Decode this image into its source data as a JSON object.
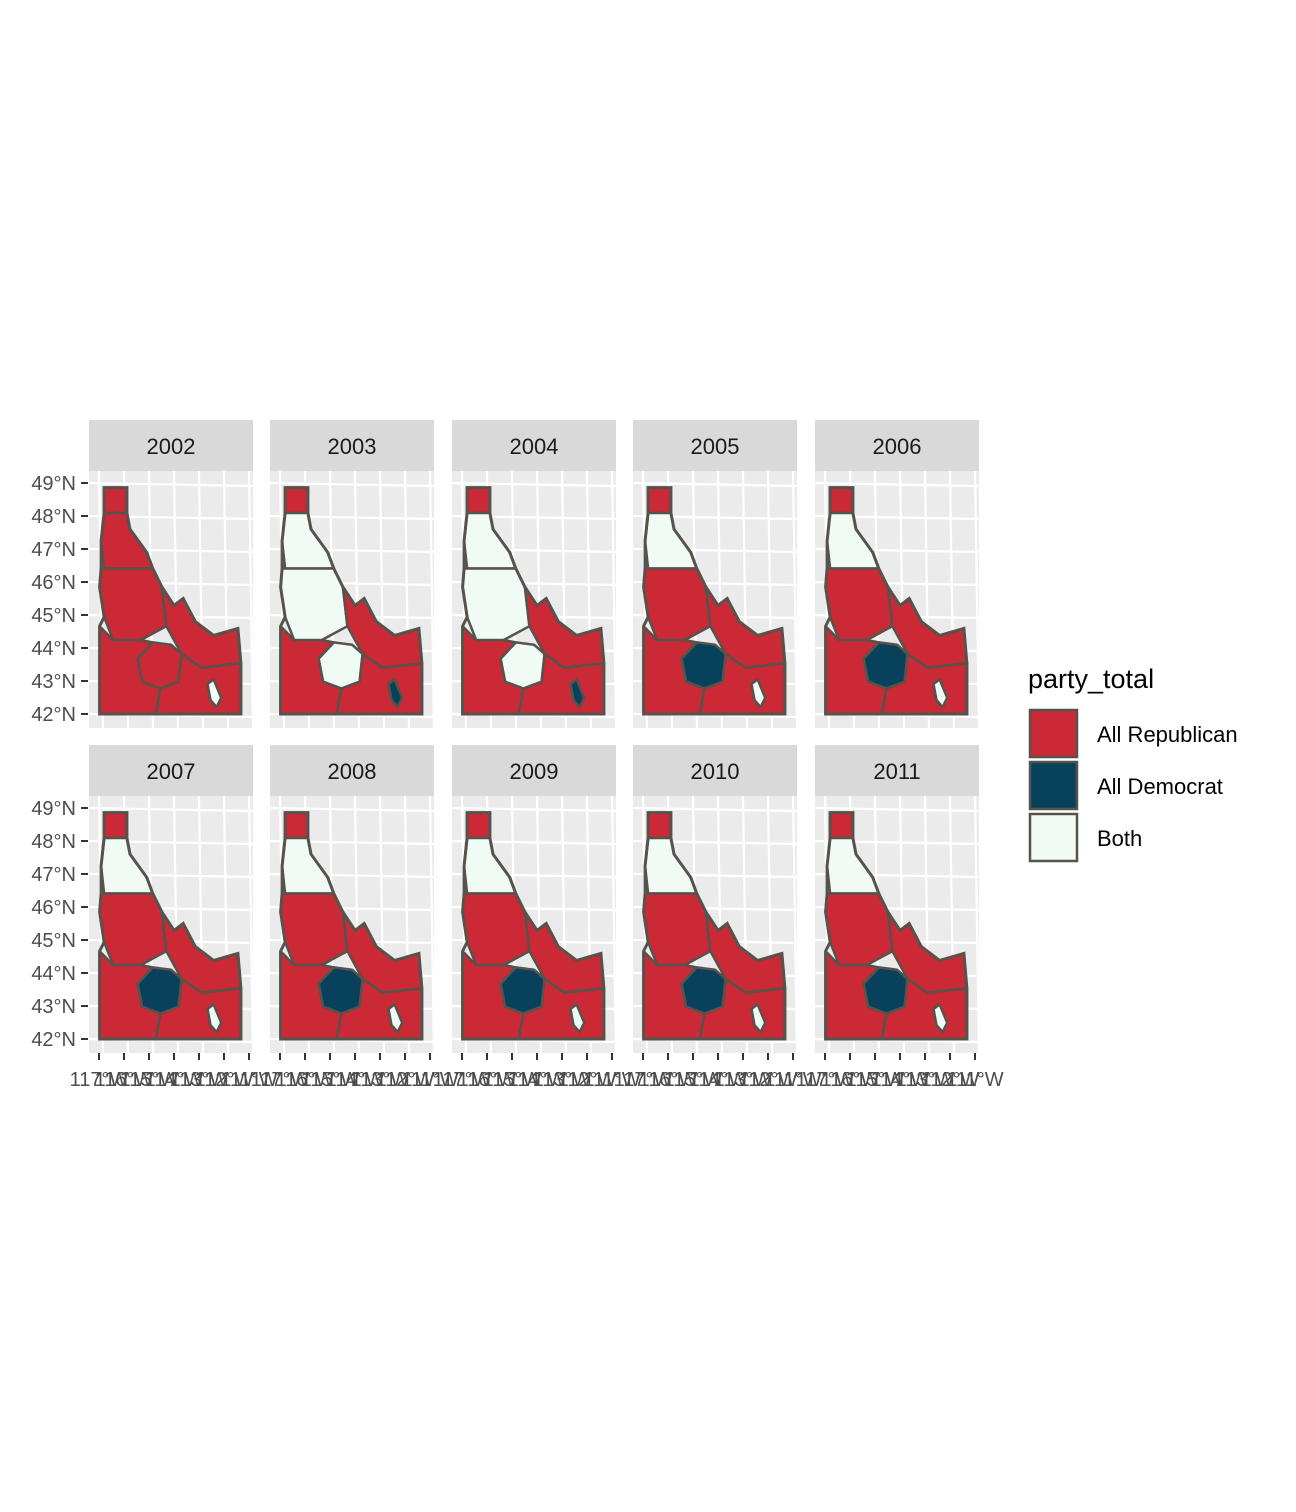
{
  "colors": {
    "All Republican": "#cc2936",
    "All Democrat": "#08415c",
    "Both": "#effbf4",
    "border": "#56534c",
    "panel_background": "#ebebeb",
    "strip_background": "#d9d9d9",
    "grid": "#ffffff"
  },
  "legend": {
    "title": "party_total",
    "items": [
      {
        "label": "All Republican",
        "key": "All Republican"
      },
      {
        "label": "All Democrat",
        "key": "All Democrat"
      },
      {
        "label": "Both",
        "key": "Both"
      }
    ]
  },
  "axes": {
    "y_ticks": [
      "49°N",
      "48°N",
      "47°N",
      "46°N",
      "45°N",
      "44°N",
      "43°N",
      "42°N"
    ],
    "x_ticks": [
      "117°W",
      "116°W",
      "115°W",
      "114°W",
      "113°W",
      "112°W",
      "111°W"
    ]
  },
  "chart_data": {
    "type": "choropleth facet map",
    "facet_by": "year",
    "fill_variable": "party_total",
    "categories": [
      "All Republican",
      "All Democrat",
      "Both"
    ],
    "facets": [
      {
        "year": "2002",
        "north": "All Republican",
        "panhandle": "All Republican",
        "northcentral": "All Republican",
        "central": "All Republican",
        "boise": "All Republican",
        "southwest": "All Republican",
        "southeast": "All Republican",
        "pocatello": "Both"
      },
      {
        "year": "2003",
        "north": "All Republican",
        "panhandle": "Both",
        "northcentral": "Both",
        "central": "All Republican",
        "boise": "Both",
        "southwest": "All Republican",
        "southeast": "All Republican",
        "pocatello": "All Democrat"
      },
      {
        "year": "2004",
        "north": "All Republican",
        "panhandle": "Both",
        "northcentral": "Both",
        "central": "All Republican",
        "boise": "Both",
        "southwest": "All Republican",
        "southeast": "All Republican",
        "pocatello": "All Democrat"
      },
      {
        "year": "2005",
        "north": "All Republican",
        "panhandle": "Both",
        "northcentral": "All Republican",
        "central": "All Republican",
        "boise": "All Democrat",
        "southwest": "All Republican",
        "southeast": "All Republican",
        "pocatello": "Both"
      },
      {
        "year": "2006",
        "north": "All Republican",
        "panhandle": "Both",
        "northcentral": "All Republican",
        "central": "All Republican",
        "boise": "All Democrat",
        "southwest": "All Republican",
        "southeast": "All Republican",
        "pocatello": "Both"
      },
      {
        "year": "2007",
        "north": "All Republican",
        "panhandle": "Both",
        "northcentral": "All Republican",
        "central": "All Republican",
        "boise": "All Democrat",
        "southwest": "All Republican",
        "southeast": "All Republican",
        "pocatello": "Both"
      },
      {
        "year": "2008",
        "north": "All Republican",
        "panhandle": "Both",
        "northcentral": "All Republican",
        "central": "All Republican",
        "boise": "All Democrat",
        "southwest": "All Republican",
        "southeast": "All Republican",
        "pocatello": "Both"
      },
      {
        "year": "2009",
        "north": "All Republican",
        "panhandle": "Both",
        "northcentral": "All Republican",
        "central": "All Republican",
        "boise": "All Democrat",
        "southwest": "All Republican",
        "southeast": "All Republican",
        "pocatello": "Both"
      },
      {
        "year": "2010",
        "north": "All Republican",
        "panhandle": "Both",
        "northcentral": "All Republican",
        "central": "All Republican",
        "boise": "All Democrat",
        "southwest": "All Republican",
        "southeast": "All Republican",
        "pocatello": "Both"
      },
      {
        "year": "2011",
        "north": "All Republican",
        "panhandle": "Both",
        "northcentral": "All Republican",
        "central": "All Republican",
        "boise": "All Democrat",
        "southwest": "All Republican",
        "southeast": "All Republican",
        "pocatello": "Both"
      }
    ]
  }
}
